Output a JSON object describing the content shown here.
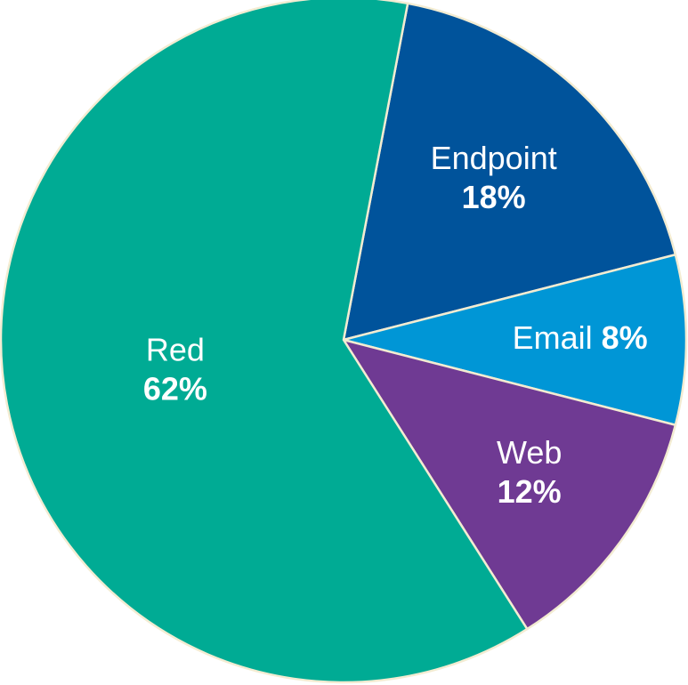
{
  "chart_data": {
    "type": "pie",
    "categories": [
      "Endpoint",
      "Email",
      "Web",
      "Red"
    ],
    "values": [
      18,
      8,
      12,
      62
    ],
    "value_labels": [
      "18%",
      "8%",
      "12%",
      "62%"
    ],
    "colors": [
      "#00539b",
      "#0096d6",
      "#6f3a93",
      "#00ab94"
    ]
  }
}
